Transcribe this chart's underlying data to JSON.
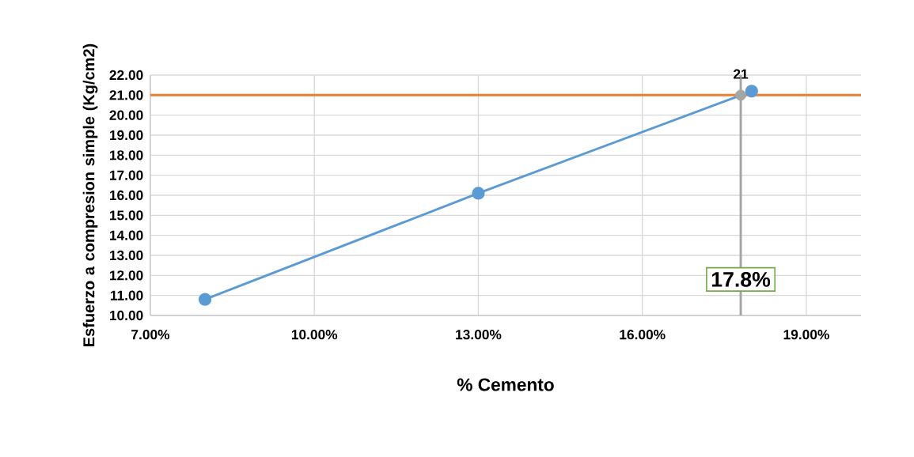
{
  "chart_data": {
    "type": "line",
    "xlabel": "% Cemento",
    "ylabel": "Esfuerzo a compresion simple (Kg/cm2)",
    "xlim": [
      7,
      20
    ],
    "ylim": [
      10,
      22
    ],
    "xticks": [
      {
        "value": 7,
        "label": "7.00%"
      },
      {
        "value": 10,
        "label": "10.00%"
      },
      {
        "value": 13,
        "label": "13.00%"
      },
      {
        "value": 16,
        "label": "16.00%"
      },
      {
        "value": 19,
        "label": "19.00%"
      }
    ],
    "yticks": [
      {
        "value": 10,
        "label": "10.00"
      },
      {
        "value": 11,
        "label": "11.00"
      },
      {
        "value": 12,
        "label": "12.00"
      },
      {
        "value": 13,
        "label": "13.00"
      },
      {
        "value": 14,
        "label": "14.00"
      },
      {
        "value": 15,
        "label": "15.00"
      },
      {
        "value": 16,
        "label": "16.00"
      },
      {
        "value": 17,
        "label": "17.00"
      },
      {
        "value": 18,
        "label": "18.00"
      },
      {
        "value": 19,
        "label": "19.00"
      },
      {
        "value": 20,
        "label": "20.00"
      },
      {
        "value": 21,
        "label": "21.00"
      },
      {
        "value": 22,
        "label": "22.00"
      }
    ],
    "series": [
      {
        "color": "#5b9bd5",
        "x": [
          8,
          13,
          18
        ],
        "values": [
          10.8,
          16.1,
          21.2
        ]
      },
      {
        "type": "scatter",
        "color": "#a5a5a5",
        "x": [
          17.8
        ],
        "values": [
          21
        ],
        "value_labels": [
          "21"
        ]
      }
    ],
    "ref_lines": [
      {
        "axis": "y",
        "value": 21,
        "color": "#ed7d31"
      },
      {
        "axis": "x",
        "value": 17.8,
        "label": "17.8%",
        "color": "#a5a5a5"
      }
    ],
    "grid": true,
    "marker": "circle",
    "line_style": "solid"
  }
}
